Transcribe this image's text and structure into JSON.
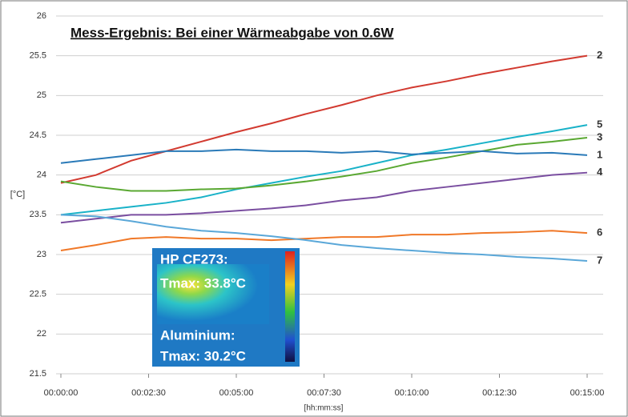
{
  "chart_data": {
    "type": "line",
    "title": "Mess-Ergebnis: Bei einer Wärmeabgabe von 0.6W",
    "y_label": "[°C]",
    "x_label": "[hh:mm:ss]",
    "ylim": [
      21.5,
      26
    ],
    "yticks": [
      21.5,
      22,
      22.5,
      23,
      23.5,
      24,
      24.5,
      25,
      25.5,
      26
    ],
    "xlim": [
      0,
      900
    ],
    "xticks": [
      {
        "value": 0,
        "label": "00:00:00"
      },
      {
        "value": 150,
        "label": "00:02:30"
      },
      {
        "value": 300,
        "label": "00:05:00"
      },
      {
        "value": 450,
        "label": "00:07:30"
      },
      {
        "value": 600,
        "label": "00:10:00"
      },
      {
        "value": 750,
        "label": "00:12:30"
      },
      {
        "value": 900,
        "label": "00:15:00"
      }
    ],
    "grid": true,
    "x": [
      0,
      60,
      120,
      180,
      240,
      300,
      360,
      420,
      480,
      540,
      600,
      660,
      720,
      780,
      840,
      900
    ],
    "series": [
      {
        "name": "2",
        "color": "#d23a30",
        "values": [
          23.9,
          24.0,
          24.18,
          24.3,
          24.42,
          24.54,
          24.65,
          24.77,
          24.88,
          25.0,
          25.1,
          25.18,
          25.27,
          25.35,
          25.43,
          25.5
        ]
      },
      {
        "name": "5",
        "color": "#19b2c8",
        "values": [
          23.5,
          23.55,
          23.6,
          23.65,
          23.72,
          23.82,
          23.9,
          23.98,
          24.05,
          24.15,
          24.25,
          24.32,
          24.4,
          24.48,
          24.55,
          24.63
        ]
      },
      {
        "name": "3",
        "color": "#5aa832",
        "values": [
          23.92,
          23.85,
          23.8,
          23.8,
          23.82,
          23.83,
          23.87,
          23.92,
          23.98,
          24.05,
          24.15,
          24.22,
          24.3,
          24.38,
          24.42,
          24.47
        ]
      },
      {
        "name": "1",
        "color": "#2a7ab8",
        "values": [
          24.15,
          24.2,
          24.25,
          24.3,
          24.3,
          24.32,
          24.3,
          24.3,
          24.28,
          24.3,
          24.26,
          24.28,
          24.3,
          24.27,
          24.28,
          24.25
        ]
      },
      {
        "name": "4",
        "color": "#7a4ea0",
        "values": [
          23.4,
          23.45,
          23.5,
          23.5,
          23.52,
          23.55,
          23.58,
          23.62,
          23.68,
          23.72,
          23.8,
          23.85,
          23.9,
          23.95,
          24.0,
          24.03
        ]
      },
      {
        "name": "6",
        "color": "#f07828",
        "values": [
          23.05,
          23.12,
          23.2,
          23.22,
          23.2,
          23.2,
          23.18,
          23.2,
          23.22,
          23.22,
          23.25,
          23.25,
          23.27,
          23.28,
          23.3,
          23.27
        ]
      },
      {
        "name": "7",
        "color": "#5aa7d8",
        "values": [
          23.5,
          23.48,
          23.42,
          23.35,
          23.3,
          23.27,
          23.23,
          23.18,
          23.12,
          23.08,
          23.05,
          23.02,
          23.0,
          22.97,
          22.95,
          22.92
        ]
      }
    ],
    "inset": {
      "label_1": "HP CF273:",
      "value_1": "Tmax: 33.8°C",
      "label_2": "Aluminium:",
      "value_2": "Tmax: 30.2°C"
    }
  }
}
